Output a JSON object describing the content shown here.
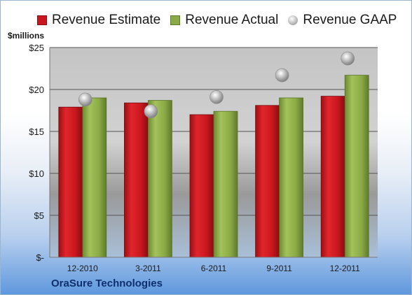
{
  "chart_data": {
    "type": "bar",
    "categories": [
      "12-2010",
      "3-2011",
      "6-2011",
      "9-2011",
      "12-2011"
    ],
    "series": [
      {
        "name": "Revenue Estimate",
        "kind": "bar",
        "color": "#c8171e",
        "values": [
          17.9,
          18.4,
          17.0,
          18.1,
          19.2
        ]
      },
      {
        "name": "Revenue Actual",
        "kind": "bar",
        "color": "#8aaa45",
        "values": [
          19.0,
          18.7,
          17.4,
          19.0,
          21.7
        ]
      },
      {
        "name": "Revenue GAAP",
        "kind": "marker",
        "color": "#b0b0b0",
        "values": [
          18.8,
          17.4,
          19.1,
          21.7,
          23.7
        ]
      }
    ],
    "ylabel": "$millions",
    "ylim": [
      0,
      25
    ],
    "yticks": [
      0,
      5,
      10,
      15,
      20,
      25
    ],
    "ytick_labels": [
      "$-",
      "$5",
      "$10",
      "$15",
      "$20",
      "$25"
    ],
    "grid": true,
    "legend_position": "top"
  },
  "company": "OraSure Technologies"
}
